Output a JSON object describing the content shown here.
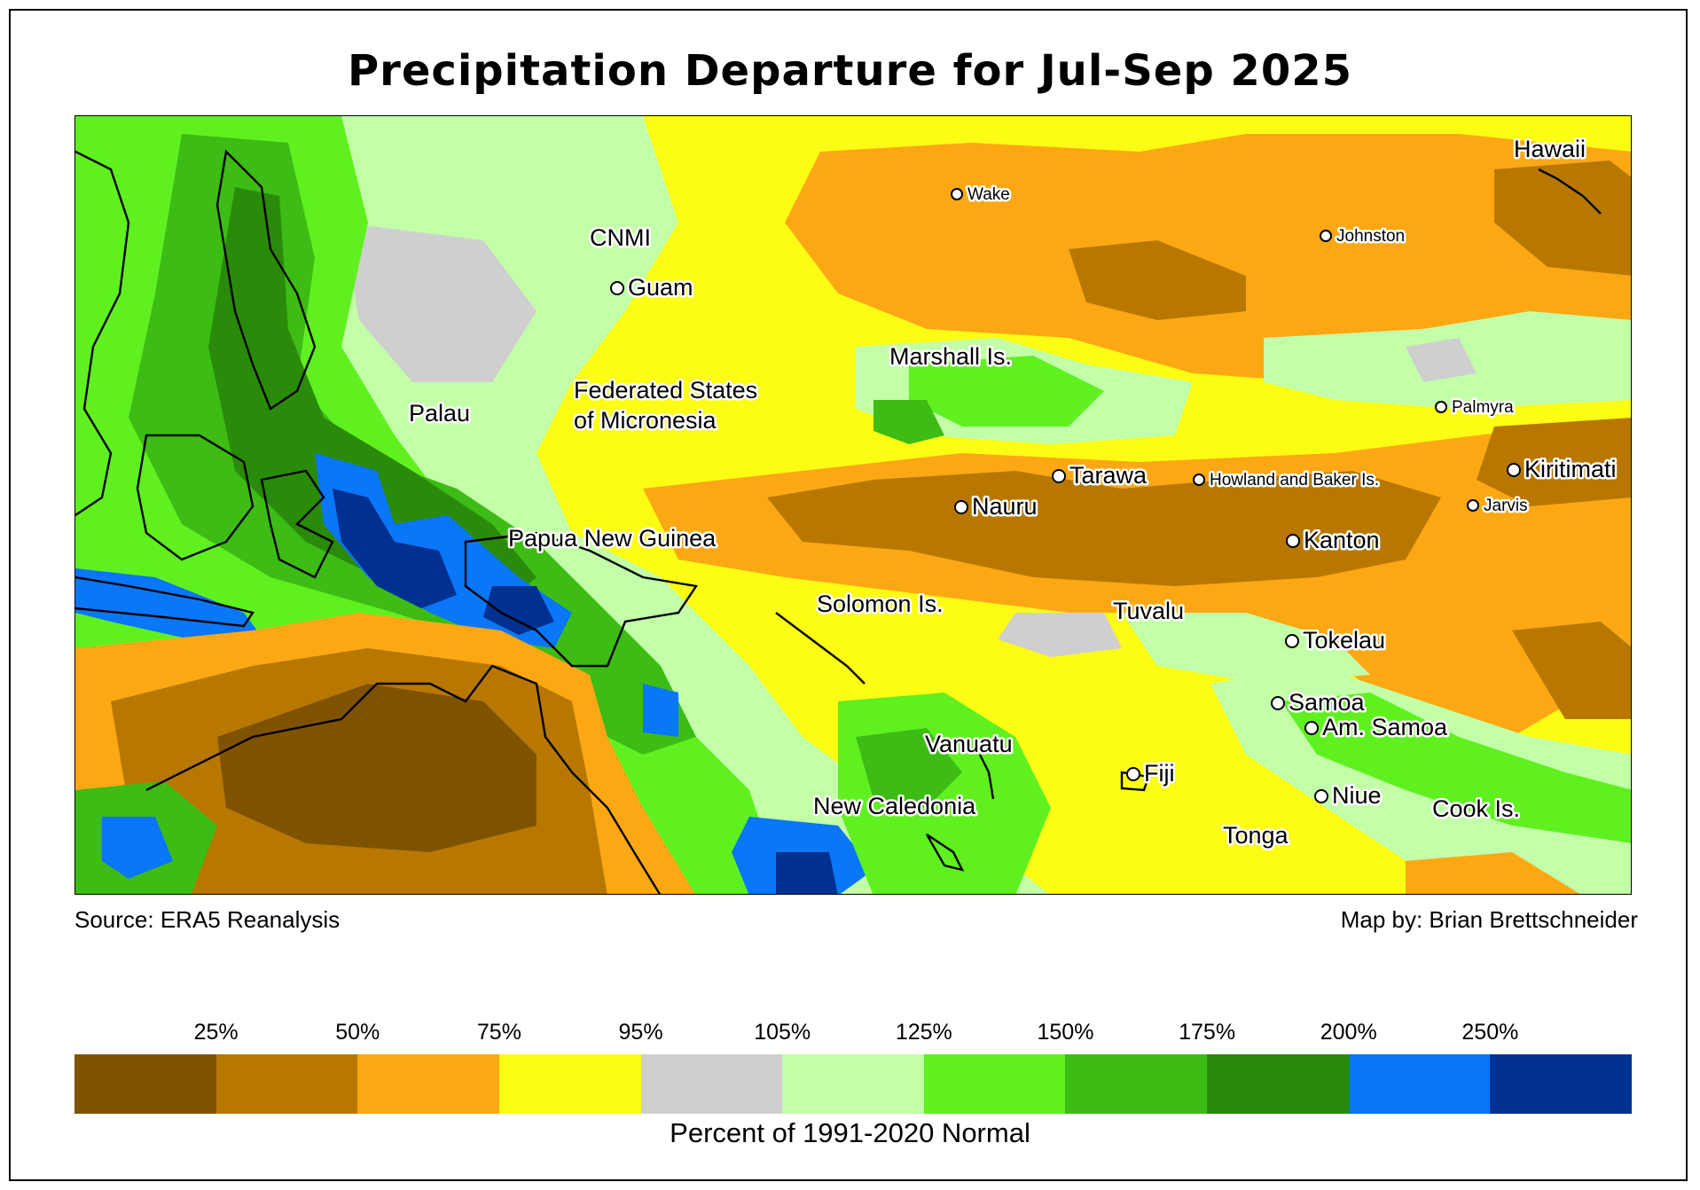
{
  "title": "Precipitation Departure for Jul-Sep 2025",
  "source": "Source: ERA5 Reanalysis",
  "credit": "Map by: Brian Brettschneider",
  "legend": {
    "caption": "Percent of 1991-2020 Normal",
    "ticks": [
      "25%",
      "50%",
      "75%",
      "95%",
      "105%",
      "125%",
      "150%",
      "175%",
      "200%",
      "250%"
    ],
    "colors": [
      "#7f5200",
      "#b87800",
      "#fca814",
      "#fcfc14",
      "#cfcfcf",
      "#c2ffa8",
      "#60f020",
      "#3cbc14",
      "#2a8a0a",
      "#0a76f8",
      "#003090"
    ]
  },
  "map": {
    "places": [
      {
        "name": "Wake",
        "marker": true,
        "size": "small"
      },
      {
        "name": "Johnston",
        "marker": true,
        "size": "small"
      },
      {
        "name": "Hawaii",
        "marker": false,
        "size": "large"
      },
      {
        "name": "CNMI",
        "marker": false,
        "size": "large"
      },
      {
        "name": "Guam",
        "marker": true,
        "size": "large"
      },
      {
        "name": "Marshall Is.",
        "marker": false,
        "size": "large"
      },
      {
        "name": "Federated States",
        "marker": false,
        "size": "large"
      },
      {
        "name": "of Micronesia",
        "marker": false,
        "size": "large"
      },
      {
        "name": "Palau",
        "marker": false,
        "size": "large"
      },
      {
        "name": "Palmyra",
        "marker": true,
        "size": "small"
      },
      {
        "name": "Tarawa",
        "marker": true,
        "size": "large"
      },
      {
        "name": "Howland and Baker Is.",
        "marker": true,
        "size": "small"
      },
      {
        "name": "Kiritimati",
        "marker": true,
        "size": "large"
      },
      {
        "name": "Nauru",
        "marker": true,
        "size": "large"
      },
      {
        "name": "Jarvis",
        "marker": true,
        "size": "small"
      },
      {
        "name": "Kanton",
        "marker": true,
        "size": "large"
      },
      {
        "name": "Papua New Guinea",
        "marker": false,
        "size": "large"
      },
      {
        "name": "Solomon Is.",
        "marker": false,
        "size": "large"
      },
      {
        "name": "Tuvalu",
        "marker": false,
        "size": "large"
      },
      {
        "name": "Tokelau",
        "marker": true,
        "size": "large"
      },
      {
        "name": "Samoa",
        "marker": true,
        "size": "large"
      },
      {
        "name": "Am. Samoa",
        "marker": true,
        "size": "large"
      },
      {
        "name": "Vanuatu",
        "marker": false,
        "size": "large"
      },
      {
        "name": "Fiji",
        "marker": true,
        "size": "large"
      },
      {
        "name": "Niue",
        "marker": true,
        "size": "large"
      },
      {
        "name": "Cook Is.",
        "marker": false,
        "size": "large"
      },
      {
        "name": "New Caledonia",
        "marker": false,
        "size": "large"
      },
      {
        "name": "Tonga",
        "marker": false,
        "size": "large"
      }
    ]
  }
}
